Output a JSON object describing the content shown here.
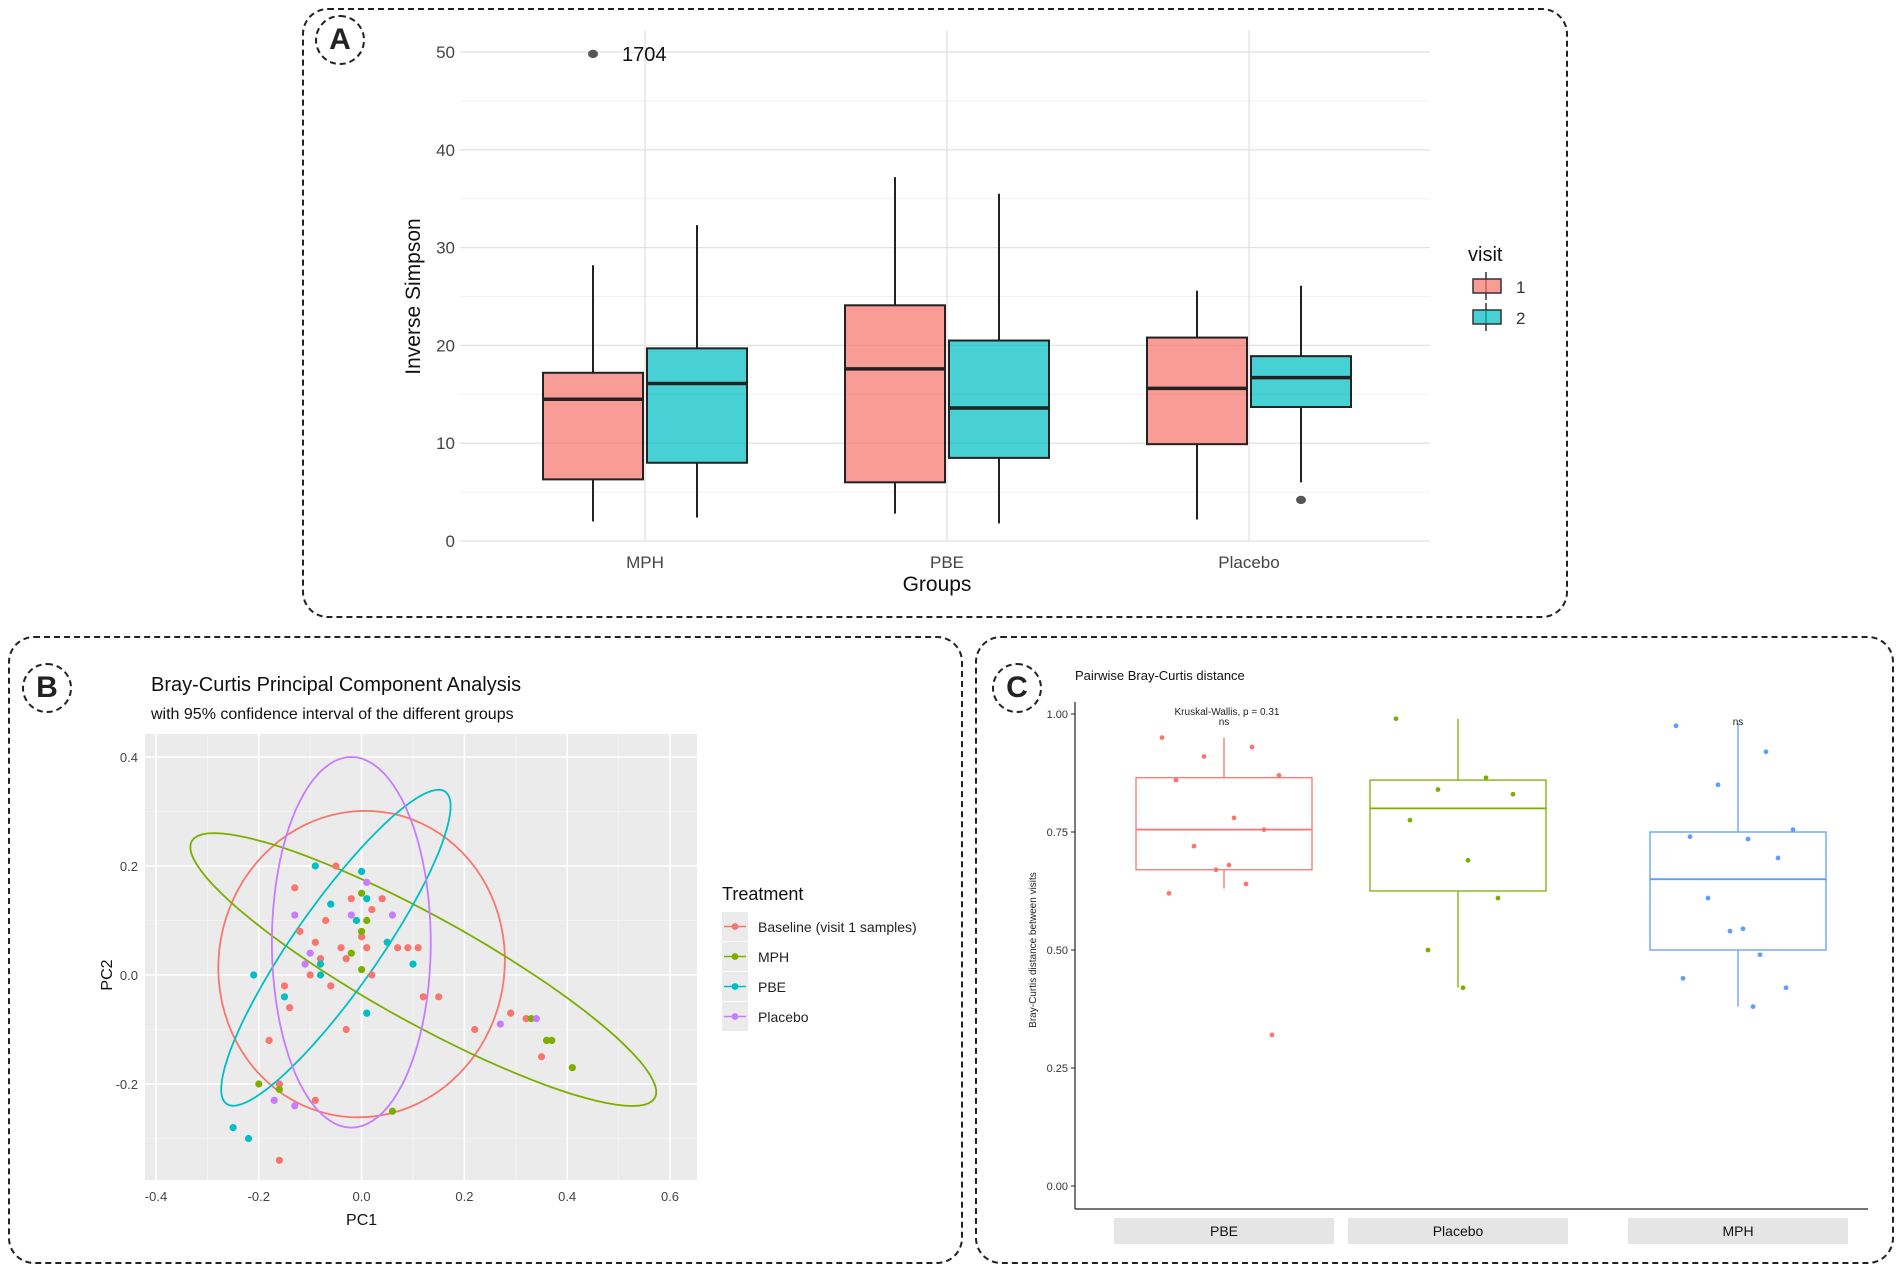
{
  "panels": {
    "a": {
      "letter": "A"
    },
    "b": {
      "letter": "B"
    },
    "c": {
      "letter": "C"
    }
  },
  "chart_data": [
    {
      "id": "A",
      "type": "boxplot",
      "title": "",
      "xlabel": "Groups",
      "ylabel": "Inverse Simpson",
      "ylim": [
        0,
        50
      ],
      "yticks": [
        0,
        10,
        20,
        30,
        40,
        50
      ],
      "categories": [
        "MPH",
        "PBE",
        "Placebo"
      ],
      "legend": {
        "title": "visit",
        "position": "right",
        "entries": [
          {
            "label": "1",
            "color": "#F8766D"
          },
          {
            "label": "2",
            "color": "#00BFC4"
          }
        ]
      },
      "series": [
        {
          "name": "1",
          "color": "#F8766D",
          "boxes": [
            {
              "group": "MPH",
              "min": 2,
              "q1": 6.3,
              "median": 14.5,
              "q3": 17.2,
              "max": 28.2
            },
            {
              "group": "PBE",
              "min": 2.8,
              "q1": 6,
              "median": 17.6,
              "q3": 24.1,
              "max": 37.2
            },
            {
              "group": "Placebo",
              "min": 2.2,
              "q1": 9.9,
              "median": 15.6,
              "q3": 20.8,
              "max": 25.6
            }
          ]
        },
        {
          "name": "2",
          "color": "#00BFC4",
          "boxes": [
            {
              "group": "MPH",
              "min": 2.4,
              "q1": 8,
              "median": 16.1,
              "q3": 19.7,
              "max": 32.3
            },
            {
              "group": "PBE",
              "min": 1.8,
              "q1": 8.5,
              "median": 13.6,
              "q3": 20.5,
              "max": 35.5
            },
            {
              "group": "Placebo",
              "min": 6,
              "q1": 13.7,
              "median": 16.7,
              "q3": 18.9,
              "max": 26.1
            }
          ]
        }
      ],
      "outliers": [
        {
          "series": "1",
          "group": "MPH",
          "value": 49.8,
          "label": "1704"
        },
        {
          "series": "2",
          "group": "Placebo",
          "value": 4.2,
          "label": ""
        }
      ]
    },
    {
      "id": "B",
      "type": "scatter",
      "title": "Bray-Curtis Principal Component Analysis",
      "subtitle": "with 95% confidence interval of the different groups",
      "xlabel": "PC1",
      "ylabel": "PC2",
      "xlim": [
        -0.4,
        0.65
      ],
      "ylim": [
        -0.36,
        0.42
      ],
      "xticks": [
        -0.4,
        -0.2,
        0.0,
        0.2,
        0.4,
        0.6
      ],
      "xtick_labels": [
        "-0.4",
        "-0.2",
        "0.0",
        "0.2",
        "0.4",
        "0.6"
      ],
      "yticks": [
        -0.2,
        0.0,
        0.2,
        0.4
      ],
      "ytick_labels": [
        "-0.2",
        "0.0",
        "0.2",
        "0.4"
      ],
      "grid": true,
      "legend": {
        "title": "Treatment",
        "position": "right",
        "entries": [
          {
            "label": "Baseline (visit 1 samples)",
            "color": "#F8766D"
          },
          {
            "label": "MPH",
            "color": "#7CAE00"
          },
          {
            "label": "PBE",
            "color": "#00BFC4"
          },
          {
            "label": "Placebo",
            "color": "#C77CFF"
          }
        ]
      },
      "ellipses": [
        {
          "group": "Baseline (visit 1 samples)",
          "cx": 0.0,
          "cy": 0.02,
          "rx": 0.27,
          "ry": 0.29,
          "angle": -10
        },
        {
          "group": "MPH",
          "cx": 0.12,
          "cy": 0.01,
          "rx": 0.5,
          "ry": 0.1,
          "angle": -29
        },
        {
          "group": "PBE",
          "cx": -0.05,
          "cy": 0.05,
          "rx": 0.36,
          "ry": 0.08,
          "angle": 55
        },
        {
          "group": "Placebo",
          "cx": -0.02,
          "cy": 0.06,
          "rx": 0.35,
          "ry": 0.15,
          "angle": 90
        }
      ],
      "series": [
        {
          "name": "Baseline (visit 1 samples)",
          "color": "#F8766D",
          "points": [
            [
              -0.13,
              0.16
            ],
            [
              -0.07,
              0.1
            ],
            [
              -0.02,
              0.14
            ],
            [
              0.02,
              0.12
            ],
            [
              0.04,
              0.14
            ],
            [
              -0.05,
              0.2
            ],
            [
              -0.12,
              0.08
            ],
            [
              -0.09,
              0.06
            ],
            [
              -0.04,
              0.05
            ],
            [
              0.01,
              0.05
            ],
            [
              0.05,
              0.06
            ],
            [
              0.07,
              0.05
            ],
            [
              -0.08,
              0.03
            ],
            [
              -0.03,
              0.03
            ],
            [
              0.02,
              0.0
            ],
            [
              -0.1,
              0.0
            ],
            [
              -0.06,
              -0.02
            ],
            [
              0.09,
              0.05
            ],
            [
              0.11,
              0.05
            ],
            [
              0.12,
              -0.04
            ],
            [
              0.15,
              -0.04
            ],
            [
              -0.15,
              -0.02
            ],
            [
              -0.18,
              -0.12
            ],
            [
              -0.14,
              -0.06
            ],
            [
              0.29,
              -0.07
            ],
            [
              0.32,
              -0.08
            ],
            [
              0.36,
              -0.12
            ],
            [
              0.35,
              -0.15
            ],
            [
              -0.16,
              -0.2
            ],
            [
              -0.09,
              -0.23
            ],
            [
              -0.16,
              -0.34
            ],
            [
              -0.03,
              -0.1
            ],
            [
              0.0,
              0.07
            ],
            [
              0.22,
              -0.1
            ]
          ]
        },
        {
          "name": "MPH",
          "color": "#7CAE00",
          "points": [
            [
              0.0,
              0.15
            ],
            [
              0.01,
              0.1
            ],
            [
              0.0,
              0.08
            ],
            [
              -0.02,
              0.04
            ],
            [
              0.0,
              0.01
            ],
            [
              0.33,
              -0.08
            ],
            [
              0.36,
              -0.12
            ],
            [
              0.37,
              -0.12
            ],
            [
              0.41,
              -0.17
            ],
            [
              -0.2,
              -0.2
            ],
            [
              -0.16,
              -0.21
            ],
            [
              0.06,
              -0.25
            ]
          ]
        },
        {
          "name": "PBE",
          "color": "#00BFC4",
          "points": [
            [
              -0.09,
              0.2
            ],
            [
              -0.06,
              0.13
            ],
            [
              -0.01,
              0.1
            ],
            [
              0.0,
              0.19
            ],
            [
              0.01,
              0.14
            ],
            [
              -0.08,
              0.02
            ],
            [
              -0.08,
              0.0
            ],
            [
              0.05,
              0.06
            ],
            [
              0.1,
              0.02
            ],
            [
              -0.21,
              0.0
            ],
            [
              -0.15,
              -0.04
            ],
            [
              0.01,
              -0.07
            ],
            [
              -0.25,
              -0.28
            ],
            [
              -0.22,
              -0.3
            ]
          ]
        },
        {
          "name": "Placebo",
          "color": "#C77CFF",
          "points": [
            [
              0.01,
              0.17
            ],
            [
              -0.02,
              0.11
            ],
            [
              0.06,
              0.11
            ],
            [
              -0.13,
              0.11
            ],
            [
              -0.1,
              0.04
            ],
            [
              -0.11,
              0.02
            ],
            [
              0.27,
              -0.09
            ],
            [
              0.34,
              -0.08
            ],
            [
              -0.17,
              -0.23
            ],
            [
              -0.13,
              -0.24
            ]
          ]
        }
      ]
    },
    {
      "id": "C",
      "type": "boxplot",
      "title": "Pairwise Bray-Curtis distance",
      "ylabel": "Bray-Curtis distance between visits",
      "xlabel": "",
      "ylim": [
        0,
        1
      ],
      "yticks": [
        0,
        0.25,
        0.5,
        0.75,
        1
      ],
      "ytick_labels": [
        "0.00",
        "0.25",
        "0.50",
        "0.75",
        "1.00"
      ],
      "categories": [
        "PBE",
        "Placebo",
        "MPH"
      ],
      "annotation": "Kruskal-Wallis, p = 0.31",
      "boxes": [
        {
          "group": "PBE",
          "color": "#F8766D",
          "min": 0.63,
          "q1": 0.67,
          "median": 0.755,
          "q3": 0.865,
          "max": 0.95,
          "sig": "ns",
          "points": [
            0.95,
            0.93,
            0.91,
            0.87,
            0.86,
            0.78,
            0.755,
            0.72,
            0.68,
            0.67,
            0.64,
            0.62,
            0.32
          ]
        },
        {
          "group": "Placebo",
          "color": "#7CAE00",
          "min": 0.42,
          "q1": 0.625,
          "median": 0.8,
          "q3": 0.86,
          "max": 0.99,
          "sig": "",
          "points": [
            0.99,
            0.865,
            0.84,
            0.83,
            0.775,
            0.69,
            0.61,
            0.5,
            0.42
          ]
        },
        {
          "group": "MPH",
          "color": "#619CFF",
          "min": 0.38,
          "q1": 0.5,
          "median": 0.65,
          "q3": 0.75,
          "max": 0.98,
          "sig": "ns",
          "points": [
            0.975,
            0.92,
            0.85,
            0.755,
            0.74,
            0.735,
            0.695,
            0.61,
            0.545,
            0.54,
            0.49,
            0.44,
            0.42,
            0.38
          ]
        }
      ]
    }
  ]
}
